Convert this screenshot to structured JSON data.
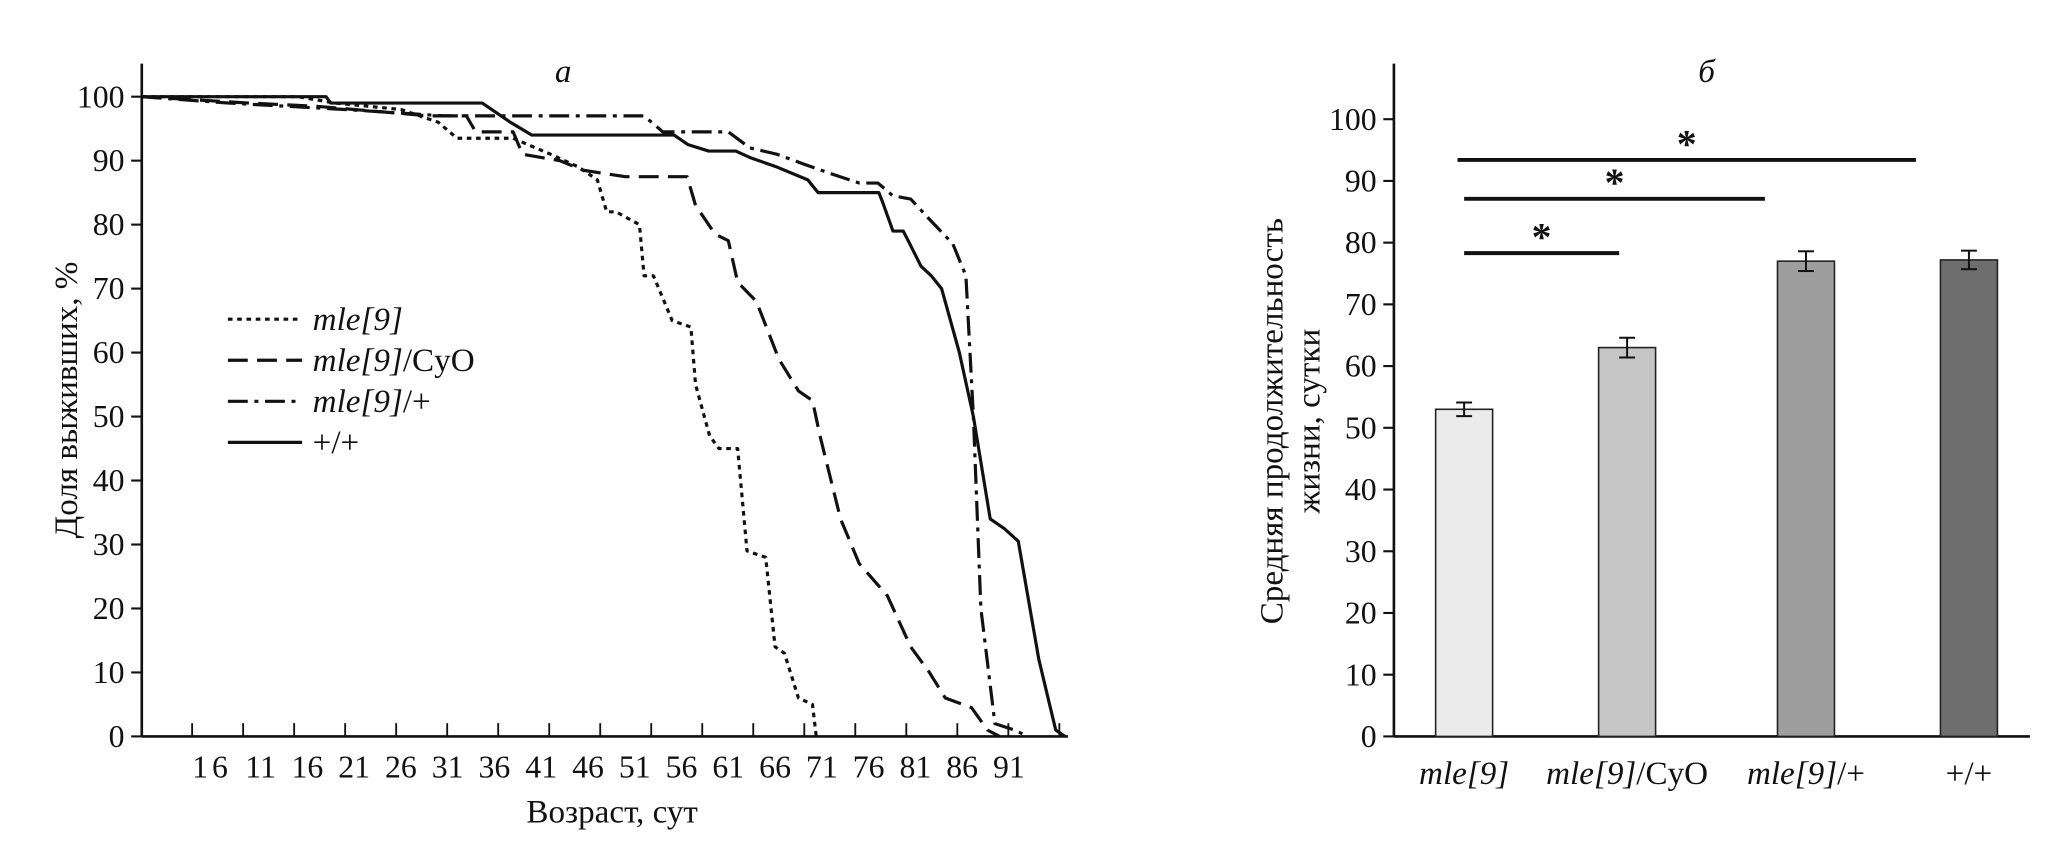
{
  "chart_data": [
    {
      "type": "line",
      "title": "а",
      "xlabel": "Возраст, сут",
      "ylabel": "Доля выживших, %",
      "xlim": [
        -1.7,
        97
      ],
      "ylim": [
        0,
        100
      ],
      "yticks": [
        0,
        10,
        20,
        30,
        40,
        50,
        60,
        70,
        80,
        90,
        100
      ],
      "xticks": [
        1,
        6,
        11,
        16,
        21,
        26,
        31,
        36,
        41,
        46,
        51,
        56,
        61,
        66,
        71,
        76,
        81,
        86,
        91
      ],
      "legend_position": "center-left",
      "series": [
        {
          "name": "mle[9]",
          "name_italic": "mle[9]",
          "name_suffix": "",
          "style": "dotted",
          "x": [
            -1.7,
            15,
            19,
            26,
            30,
            32,
            38,
            42,
            45,
            47,
            48,
            49,
            51.5,
            52,
            53,
            55,
            57,
            57.5,
            59,
            60,
            62,
            63,
            65,
            66,
            67,
            68.5,
            70,
            70.4
          ],
          "y": [
            100,
            100,
            99,
            98,
            96,
            93.5,
            93.5,
            91,
            89,
            87,
            82,
            82,
            80,
            72,
            72,
            65,
            64,
            55,
            47,
            45,
            45,
            29,
            28,
            14,
            13,
            6,
            5,
            0
          ]
        },
        {
          "name": "mle[9]/CyO",
          "name_italic": "mle[9]",
          "name_suffix": "/CyO",
          "style": "dashed",
          "x": [
            -1.7,
            9.8,
            17,
            29,
            33,
            34,
            38,
            39,
            43,
            45.5,
            50,
            56.6,
            57.5,
            59.6,
            61,
            62,
            64,
            66.4,
            68.5,
            70,
            70.8,
            73,
            75,
            78,
            80.5,
            82.5,
            84.2,
            87,
            88.7,
            90
          ],
          "y": [
            100,
            99,
            98.5,
            97,
            97,
            94.5,
            94.5,
            91,
            90,
            88.5,
            87.5,
            87.5,
            83,
            78.5,
            77.5,
            71,
            68,
            59,
            54,
            52.5,
            47,
            34,
            27,
            22,
            14,
            10,
            6,
            4.5,
            1,
            0
          ]
        },
        {
          "name": "mle[9]/+",
          "name_italic": "mle[9]",
          "name_suffix": "/+",
          "style": "dash-dot",
          "x": [
            -1.7,
            7.6,
            20,
            30.6,
            52,
            54,
            61,
            63.3,
            66.2,
            69,
            71.9,
            75,
            77,
            78.6,
            80.5,
            82.4,
            85,
            86.4,
            87.2,
            88,
            89.5,
            91.6,
            93
          ],
          "y": [
            100,
            99,
            98,
            97,
            97,
            94.5,
            94.5,
            92,
            91,
            89.5,
            88,
            86.5,
            86.5,
            84.5,
            84,
            81,
            77,
            72,
            50,
            20,
            2,
            1,
            0
          ]
        },
        {
          "name": "+/+",
          "name_italic": "",
          "name_suffix": "+/+",
          "style": "solid",
          "x": [
            -1.7,
            18,
            18.5,
            34.7,
            37.7,
            40,
            55.2,
            56.7,
            58.9,
            61.8,
            63.3,
            66.2,
            69.5,
            70.6,
            77.1,
            77.5,
            78.6,
            79.7,
            80.4,
            81.6,
            82.7,
            83.8,
            85.7,
            87.2,
            89,
            90.5,
            92,
            94.2,
            96,
            97
          ],
          "y": [
            100,
            100,
            99,
            99,
            96,
            94,
            94,
            92.5,
            91.5,
            91.5,
            90.5,
            89,
            87,
            85,
            85,
            83.5,
            79,
            79,
            77,
            73.5,
            72,
            70,
            60,
            50,
            34,
            32.5,
            30.5,
            12,
            1,
            0
          ]
        }
      ]
    },
    {
      "type": "bar",
      "title": "б",
      "xlabel": "",
      "ylabel": [
        "Средняя продолжительность",
        "жизни, сутки"
      ],
      "ylim": [
        0,
        108
      ],
      "yticks": [
        0,
        10,
        20,
        30,
        40,
        50,
        60,
        70,
        80,
        90,
        100
      ],
      "categories": [
        {
          "italic": "mle[9]",
          "suffix": ""
        },
        {
          "italic": "mle[9]",
          "suffix": "/CyO"
        },
        {
          "italic": "mle[9]",
          "suffix": "/+"
        },
        {
          "italic": "",
          "suffix": "+/+"
        }
      ],
      "values": [
        53,
        63,
        77,
        77.2
      ],
      "errors": [
        1.1,
        1.6,
        1.6,
        1.5
      ],
      "colors": [
        "#ebebeb",
        "#c6c6c6",
        "#9e9e9e",
        "#6e6e6e"
      ],
      "significance": [
        {
          "from": 0,
          "to": 1,
          "level": 78.3,
          "label": "*"
        },
        {
          "from": 0,
          "to": 2,
          "level": 87.1,
          "label": "*"
        },
        {
          "from": 0,
          "to": 3,
          "level": 93.4,
          "label": "*"
        }
      ]
    }
  ]
}
